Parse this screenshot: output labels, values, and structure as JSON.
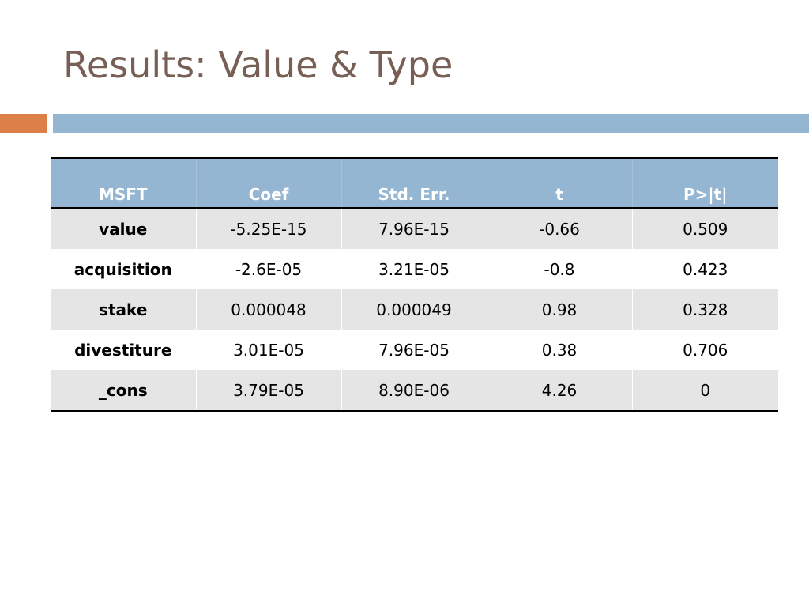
{
  "slide": {
    "title": "Results: Value & Type"
  },
  "colors": {
    "title": "#775f55",
    "accent_orange": "#dd8047",
    "accent_blue": "#94b6d2",
    "header_fill": "#94b6d2",
    "row_band_fill": "#e5e5e5"
  },
  "table": {
    "headers": [
      "MSFT",
      "Coef",
      "Std. Err.",
      "t",
      "P>|t|"
    ],
    "rows": [
      [
        "value",
        "-5.25E-15",
        "7.96E-15",
        "-0.66",
        "0.509"
      ],
      [
        "acquisition",
        "-2.6E-05",
        "3.21E-05",
        "-0.8",
        "0.423"
      ],
      [
        "stake",
        "0.000048",
        "0.000049",
        "0.98",
        "0.328"
      ],
      [
        "divestiture",
        "3.01E-05",
        "7.96E-05",
        "0.38",
        "0.706"
      ],
      [
        "_cons",
        "3.79E-05",
        "8.90E-06",
        "4.26",
        "0"
      ]
    ]
  }
}
